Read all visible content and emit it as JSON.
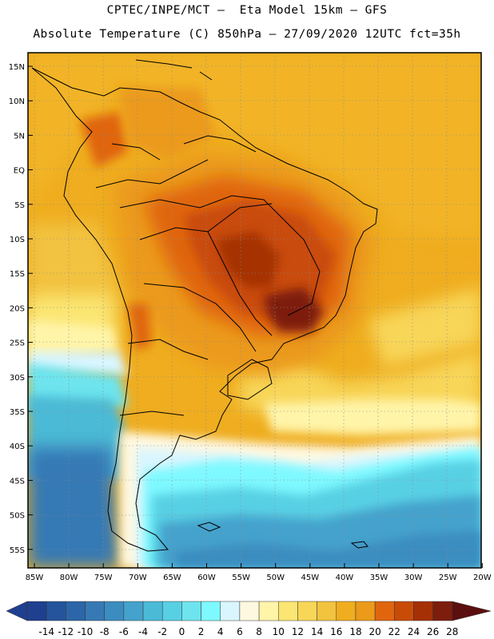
{
  "title": {
    "line1": "CPTEC/INPE/MCT –  Eta Model 15km – GFS",
    "line2": "Absolute Temperature (C) 850hPa – 27/09/2020 12UTC fct=35h"
  },
  "lat_labels": [
    "15N",
    "10N",
    "5N",
    "EQ",
    "5S",
    "10S",
    "15S",
    "20S",
    "25S",
    "30S",
    "35S",
    "40S",
    "45S",
    "50S",
    "55S"
  ],
  "lon_labels": [
    "85W",
    "80W",
    "75W",
    "70W",
    "65W",
    "60W",
    "55W",
    "50W",
    "45W",
    "40W",
    "35W",
    "30W",
    "25W",
    "20W"
  ],
  "colorbar": {
    "levels": [
      "-14",
      "-12",
      "-10",
      "-8",
      "-6",
      "-4",
      "-2",
      "0",
      "2",
      "4",
      "6",
      "8",
      "10",
      "12",
      "14",
      "16",
      "18",
      "20",
      "22",
      "24",
      "26",
      "28"
    ],
    "colors": [
      "#1f3f8f",
      "#25549c",
      "#2c66a8",
      "#3679b5",
      "#3b8dc0",
      "#45a2cc",
      "#4bbad6",
      "#58d0e4",
      "#6de4ee",
      "#7ef9ff",
      "#d9f6ff",
      "#fff8e0",
      "#fff4a8",
      "#fbe673",
      "#f8d658",
      "#f2c33f",
      "#efad1f",
      "#eb9a1a",
      "#e0650e",
      "#c94b08",
      "#a53006",
      "#7d1e0c",
      "#5c0f0f"
    ]
  },
  "chart_data": {
    "type": "heatmap",
    "title": "CPTEC/INPE/MCT – Eta Model 15km – GFS",
    "subtitle": "Absolute Temperature (C) 850hPa – 27/09/2020 12UTC fct=35h",
    "x_range": [
      "85W",
      "20W"
    ],
    "y_range": [
      "57S",
      "17N"
    ],
    "units": "C",
    "levels": [
      -14,
      -12,
      -10,
      -8,
      -6,
      -4,
      -2,
      0,
      2,
      4,
      6,
      8,
      10,
      12,
      14,
      16,
      18,
      20,
      22,
      24,
      26,
      28
    ]
  }
}
